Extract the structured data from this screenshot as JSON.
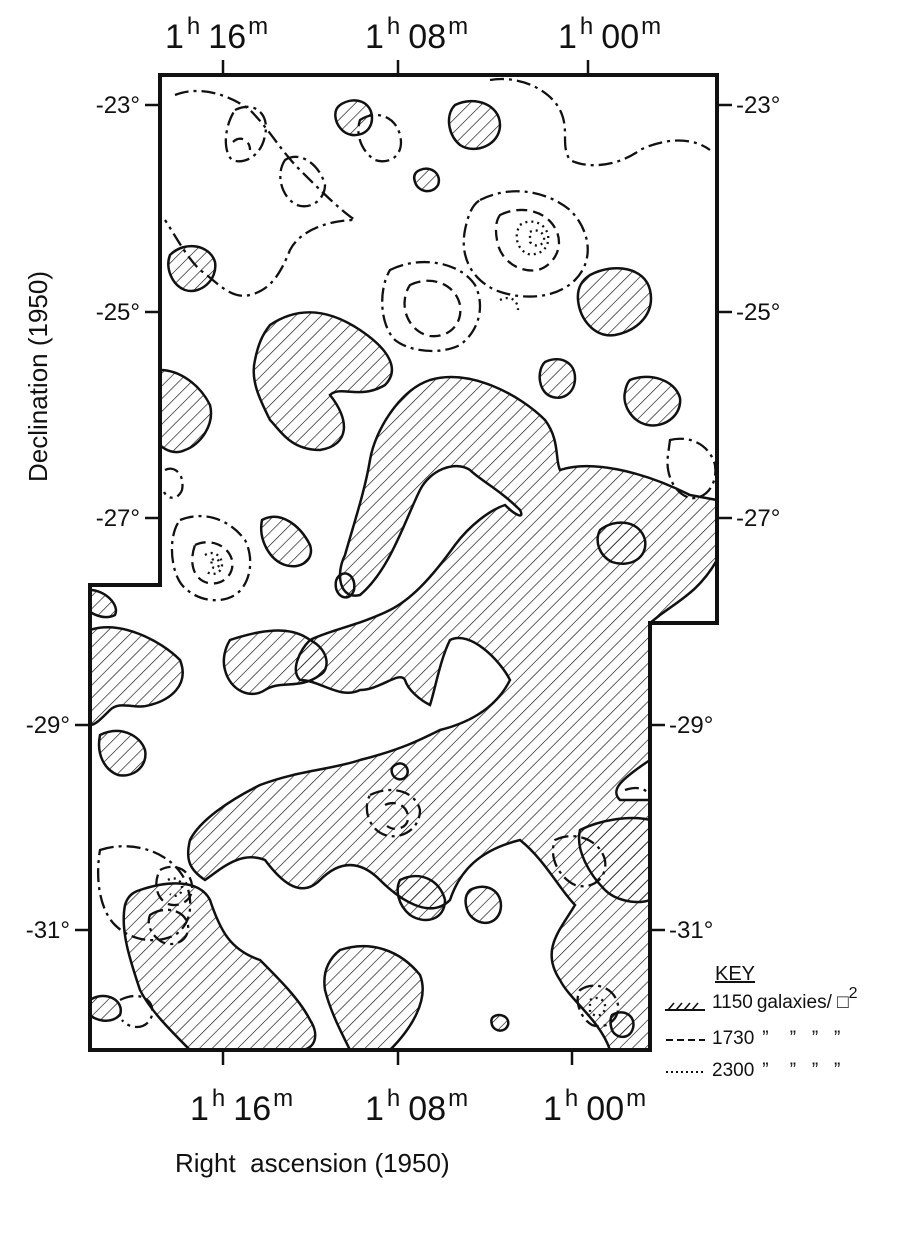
{
  "ra_axis": {
    "ticks": [
      {
        "h": "1",
        "h_unit": "h",
        "m": "16",
        "m_unit": "m"
      },
      {
        "h": "1",
        "h_unit": "h",
        "m": "08",
        "m_unit": "m"
      },
      {
        "h": "1",
        "h_unit": "h",
        "m": "00",
        "m_unit": "m"
      }
    ],
    "title": "Right  ascension (1950)"
  },
  "dec_axis": {
    "ticks": [
      "-23°",
      "-25°",
      "-27°",
      "-29°",
      "-31°"
    ],
    "title": "Declination (1950)"
  },
  "key": {
    "title": "KEY",
    "entries": [
      {
        "style": "hatched",
        "value": "1150",
        "unit": "galaxies/ □",
        "power": "2"
      },
      {
        "style": "dashed",
        "value": "1730",
        "ditto": "”    ”   ”   ”"
      },
      {
        "style": "dotted",
        "value": "2300",
        "ditto": "”    ”   ”   ”"
      }
    ]
  },
  "colors": {
    "ink": "#111111",
    "paper": "#ffffff"
  }
}
